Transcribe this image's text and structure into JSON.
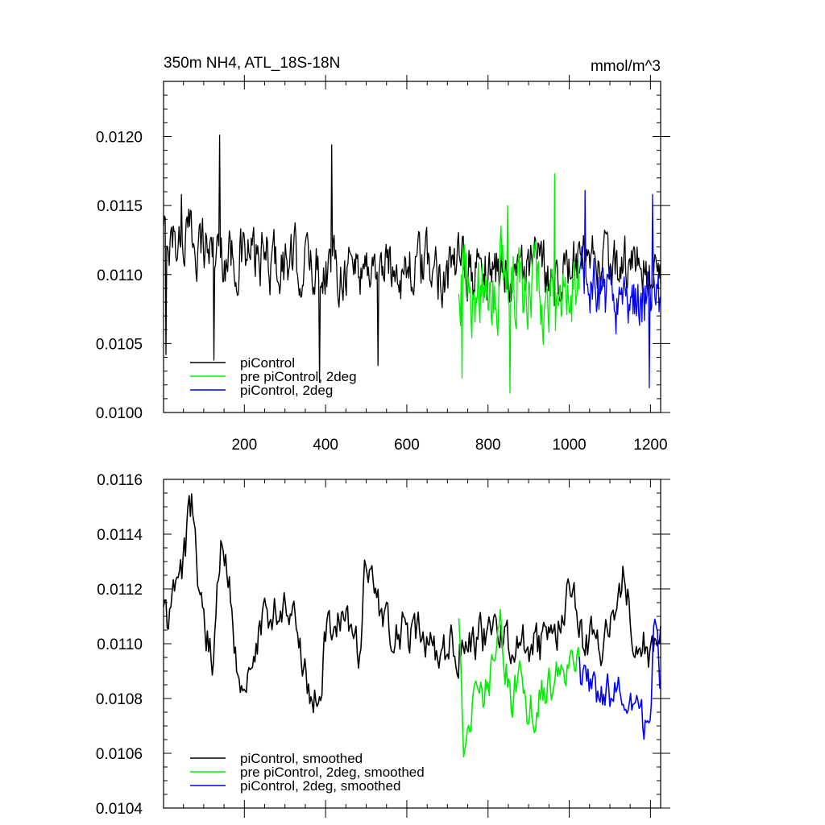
{
  "colors": {
    "piControl": "#000000",
    "pre_piControl_2deg": "#00ee00",
    "piControl_2deg": "#0000ff"
  },
  "chart_data": [
    {
      "type": "line",
      "title": "350m NH4, ATL_18S-18N",
      "units": "mmol/m^3",
      "xlim": [
        1,
        1225
      ],
      "ylim": [
        0.01,
        0.0124
      ],
      "xticks": [
        200,
        400,
        600,
        800,
        1000,
        1200
      ],
      "xtick_labels": [
        "200",
        "400",
        "600",
        "800",
        "1000",
        "1200"
      ],
      "yticks": [
        0.01,
        0.0105,
        0.011,
        0.0115,
        0.012
      ],
      "ytick_labels": [
        "0.0100",
        "0.0105",
        "0.0110",
        "0.0115",
        "0.0120"
      ],
      "legend_position": "bottom-left",
      "grid": false,
      "series": [
        {
          "name": "piControl",
          "color_key": "piControl",
          "x_range": [
            1,
            1225
          ],
          "keypoints": [
            [
              1,
              0.01125
            ],
            [
              60,
              0.01128
            ],
            [
              150,
              0.01115
            ],
            [
              300,
              0.01108
            ],
            [
              500,
              0.01106
            ],
            [
              700,
              0.01104
            ],
            [
              900,
              0.01103
            ],
            [
              1100,
              0.01104
            ],
            [
              1225,
              0.01103
            ]
          ],
          "noise": 0.00032,
          "spikes": [
            [
              8,
              0.01042
            ],
            [
              45,
              0.01158
            ],
            [
              140,
              0.01201
            ],
            [
              125,
              0.01038
            ],
            [
              415,
              0.01194
            ],
            [
              385,
              0.01022
            ],
            [
              530,
              0.01034
            ]
          ]
        },
        {
          "name": "pre piControl, 2deg",
          "color_key": "pre_piControl_2deg",
          "x_range": [
            728,
            1025
          ],
          "keypoints": [
            [
              728,
              0.011
            ],
            [
              780,
              0.01085
            ],
            [
              850,
              0.01096
            ],
            [
              950,
              0.01092
            ],
            [
              1025,
              0.0109
            ]
          ],
          "noise": 0.00046,
          "spikes": [
            [
              737,
              0.01025
            ],
            [
              855,
              0.01014
            ],
            [
              965,
              0.01173
            ],
            [
              848,
              0.0115
            ]
          ]
        },
        {
          "name": "piControl, 2deg",
          "color_key": "piControl_2deg",
          "x_range": [
            1025,
            1225
          ],
          "keypoints": [
            [
              1025,
              0.0109
            ],
            [
              1100,
              0.01082
            ],
            [
              1175,
              0.0108
            ],
            [
              1225,
              0.01082
            ]
          ],
          "noise": 0.00036,
          "spikes": [
            [
              1040,
              0.01161
            ],
            [
              1205,
              0.01158
            ],
            [
              1197,
              0.01018
            ]
          ]
        }
      ],
      "legend": [
        "piControl",
        "pre piControl, 2deg",
        "piControl, 2deg"
      ]
    },
    {
      "type": "line",
      "xlim": [
        1,
        1225
      ],
      "ylim": [
        0.0104,
        0.0116
      ],
      "xticks": [
        200,
        400,
        600,
        800,
        1000,
        1200
      ],
      "xtick_labels": [],
      "yticks": [
        0.0104,
        0.0106,
        0.0108,
        0.011,
        0.0112,
        0.0114,
        0.0116
      ],
      "ytick_labels": [
        "0.0104",
        "0.0106",
        "0.0108",
        "0.0110",
        "0.0112",
        "0.0114",
        "0.0116"
      ],
      "legend_position": "bottom-left",
      "grid": false,
      "series": [
        {
          "name": "piControl, smoothed",
          "color_key": "piControl",
          "x_range": [
            1,
            1225
          ],
          "keypoints": [
            [
              1,
              0.0111
            ],
            [
              15,
              0.01108
            ],
            [
              30,
              0.0112
            ],
            [
              50,
              0.0113
            ],
            [
              70,
              0.0115
            ],
            [
              90,
              0.0112
            ],
            [
              120,
              0.01095
            ],
            [
              145,
              0.01138
            ],
            [
              190,
              0.01088
            ],
            [
              250,
              0.01108
            ],
            [
              300,
              0.01115
            ],
            [
              350,
              0.01092
            ],
            [
              385,
              0.01073
            ],
            [
              400,
              0.011
            ],
            [
              450,
              0.0111
            ],
            [
              480,
              0.01095
            ],
            [
              500,
              0.01132
            ],
            [
              550,
              0.01105
            ],
            [
              600,
              0.01104
            ],
            [
              700,
              0.01097
            ],
            [
              800,
              0.01104
            ],
            [
              850,
              0.011
            ],
            [
              900,
              0.01096
            ],
            [
              960,
              0.01102
            ],
            [
              1000,
              0.01117
            ],
            [
              1040,
              0.01098
            ],
            [
              1100,
              0.01104
            ],
            [
              1135,
              0.01128
            ],
            [
              1160,
              0.01102
            ],
            [
              1195,
              0.01096
            ],
            [
              1225,
              0.01108
            ]
          ],
          "noise": 0.00013,
          "spikes": []
        },
        {
          "name": "pre piControl, 2deg, smoothed",
          "color_key": "pre_piControl_2deg",
          "x_range": [
            728,
            1025
          ],
          "keypoints": [
            [
              728,
              0.01105
            ],
            [
              740,
              0.01055
            ],
            [
              760,
              0.01078
            ],
            [
              800,
              0.01083
            ],
            [
              830,
              0.01103
            ],
            [
              860,
              0.01077
            ],
            [
              880,
              0.0109
            ],
            [
              900,
              0.01075
            ],
            [
              940,
              0.01083
            ],
            [
              980,
              0.01092
            ],
            [
              1025,
              0.0109
            ]
          ],
          "noise": 0.00013,
          "spikes": []
        },
        {
          "name": "piControl, 2deg, smoothed",
          "color_key": "piControl_2deg",
          "x_range": [
            1025,
            1225
          ],
          "keypoints": [
            [
              1025,
              0.0109
            ],
            [
              1050,
              0.01082
            ],
            [
              1080,
              0.01078
            ],
            [
              1110,
              0.01082
            ],
            [
              1150,
              0.01076
            ],
            [
              1180,
              0.0107
            ],
            [
              1200,
              0.01073
            ],
            [
              1210,
              0.01117
            ],
            [
              1225,
              0.01085
            ]
          ],
          "noise": 0.00012,
          "spikes": []
        }
      ],
      "legend": [
        "piControl, smoothed",
        "pre piControl, 2deg, smoothed",
        "piControl, 2deg, smoothed"
      ]
    }
  ]
}
